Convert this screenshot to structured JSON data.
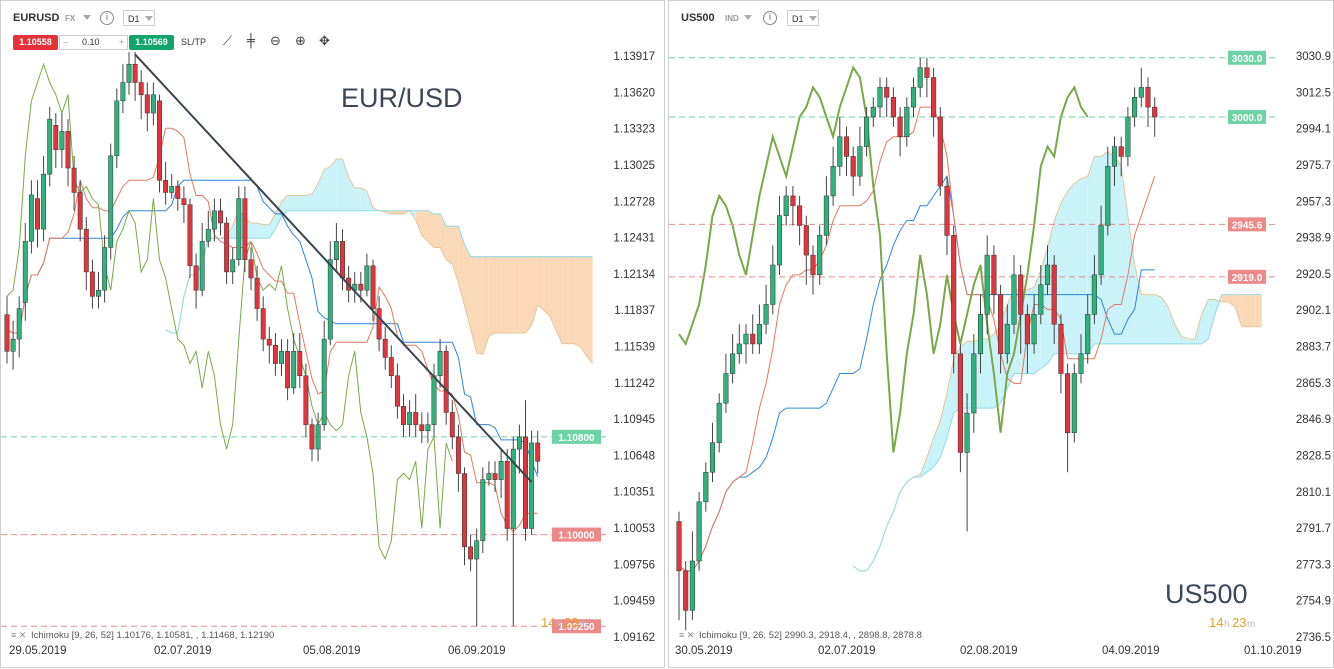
{
  "left": {
    "symbol": "EURUSD",
    "type_tag": "FX",
    "timeframe": "D1",
    "sell_price": "1.10558",
    "quantity": "0.10",
    "buy_price": "1.10569",
    "sltp_label": "SL/TP",
    "indicator": "Ichimoku [9, 26, 52] 1.10176, 1.10581, , 1.11468, 1.12190",
    "countdown": {
      "h": "14",
      "m": "23"
    }
  },
  "right": {
    "symbol": "US500",
    "type_tag": "IND",
    "timeframe": "D1",
    "indicator": "Ichimoku [9, 26, 52] 2990.3, 2918.4, , 2898.8, 2878.8",
    "countdown": {
      "h": "14",
      "m": "23"
    }
  },
  "colors": {
    "sell": "#e3323a",
    "buy": "#13a36c",
    "bull": "#2db37b",
    "bear": "#e1343d",
    "cloud_bull": "#c9f3f8",
    "cloud_bear": "#fbd9b6",
    "level_green": "#6dd3a6",
    "level_red": "#ec8a8a",
    "trendline": "#3a4550"
  },
  "chart_data": [
    {
      "type": "candlestick",
      "title": "EUR/USD",
      "y_ticks": [
        "1.13917",
        "1.13620",
        "1.13323",
        "1.13025",
        "1.12728",
        "1.12431",
        "1.12134",
        "1.11837",
        "1.11539",
        "1.11242",
        "1.10945",
        "1.10648",
        "1.10351",
        "1.10053",
        "1.09756",
        "1.09459",
        "1.09162"
      ],
      "x_ticks": [
        "29.05.2019",
        "02.07.2019",
        "05.08.2019",
        "06.09.2019"
      ],
      "ylim": [
        1.09162,
        1.13917
      ],
      "levels": [
        {
          "label": "1.10800",
          "value": 1.108,
          "color": "green"
        },
        {
          "label": "1.10000",
          "value": 1.1,
          "color": "red"
        },
        {
          "label": "1.09250",
          "value": 1.0925,
          "color": "red"
        }
      ],
      "trendline": {
        "from": {
          "bar": 21,
          "value": 1.1393
        },
        "to": {
          "bar": 86,
          "value": 1.1043
        }
      },
      "candles": [
        [
          1.118,
          1.115,
          1.1195,
          1.114
        ],
        [
          1.115,
          1.116,
          1.1175,
          1.1135
        ],
        [
          1.116,
          1.1185,
          1.1195,
          1.1145
        ],
        [
          1.119,
          1.124,
          1.1255,
          1.1175
        ],
        [
          1.124,
          1.1278,
          1.129,
          1.123
        ],
        [
          1.1275,
          1.125,
          1.129,
          1.1235
        ],
        [
          1.125,
          1.1295,
          1.131,
          1.124
        ],
        [
          1.1295,
          1.134,
          1.135,
          1.1285
        ],
        [
          1.1335,
          1.1315,
          1.1345,
          1.13
        ],
        [
          1.1315,
          1.133,
          1.1345,
          1.13
        ],
        [
          1.133,
          1.13,
          1.134,
          1.1285
        ],
        [
          1.13,
          1.128,
          1.131,
          1.1265
        ],
        [
          1.128,
          1.125,
          1.129,
          1.124
        ],
        [
          1.125,
          1.1215,
          1.126,
          1.12
        ],
        [
          1.1215,
          1.1195,
          1.1225,
          1.1185
        ],
        [
          1.1195,
          1.12,
          1.1215,
          1.1185
        ],
        [
          1.12,
          1.1235,
          1.1245,
          1.119
        ],
        [
          1.1235,
          1.131,
          1.132,
          1.1225
        ],
        [
          1.131,
          1.1355,
          1.1365,
          1.13
        ],
        [
          1.1355,
          1.137,
          1.1385,
          1.1345
        ],
        [
          1.137,
          1.1385,
          1.1395,
          1.136
        ],
        [
          1.1385,
          1.137,
          1.1395,
          1.1355
        ],
        [
          1.137,
          1.136,
          1.138,
          1.134
        ],
        [
          1.136,
          1.1345,
          1.137,
          1.133
        ],
        [
          1.1345,
          1.136,
          1.137,
          1.1335
        ],
        [
          1.1355,
          1.129,
          1.136,
          1.128
        ],
        [
          1.129,
          1.128,
          1.1305,
          1.127
        ],
        [
          1.128,
          1.1285,
          1.1295,
          1.1275
        ],
        [
          1.1285,
          1.1275,
          1.129,
          1.1265
        ],
        [
          1.1275,
          1.127,
          1.1285,
          1.1255
        ],
        [
          1.127,
          1.122,
          1.1275,
          1.121
        ],
        [
          1.122,
          1.12,
          1.123,
          1.1185
        ],
        [
          1.12,
          1.124,
          1.1255,
          1.1195
        ],
        [
          1.124,
          1.125,
          1.1265,
          1.1235
        ],
        [
          1.125,
          1.1265,
          1.1275,
          1.124
        ],
        [
          1.1265,
          1.1255,
          1.1275,
          1.1245
        ],
        [
          1.1255,
          1.1215,
          1.126,
          1.1205
        ],
        [
          1.1215,
          1.1225,
          1.1235,
          1.1205
        ],
        [
          1.1225,
          1.1275,
          1.1285,
          1.122
        ],
        [
          1.1275,
          1.1225,
          1.1285,
          1.1215
        ],
        [
          1.1225,
          1.121,
          1.1235,
          1.12
        ],
        [
          1.121,
          1.1185,
          1.122,
          1.1175
        ],
        [
          1.1185,
          1.116,
          1.1195,
          1.115
        ],
        [
          1.116,
          1.1155,
          1.117,
          1.114
        ],
        [
          1.1155,
          1.114,
          1.1165,
          1.113
        ],
        [
          1.114,
          1.115,
          1.116,
          1.113
        ],
        [
          1.115,
          1.112,
          1.116,
          1.111
        ],
        [
          1.112,
          1.115,
          1.1165,
          1.1115
        ],
        [
          1.115,
          1.113,
          1.1165,
          1.112
        ],
        [
          1.113,
          1.109,
          1.114,
          1.108
        ],
        [
          1.109,
          1.107,
          1.1095,
          1.106
        ],
        [
          1.107,
          1.109,
          1.11,
          1.106
        ],
        [
          1.109,
          1.116,
          1.1175,
          1.1085
        ],
        [
          1.116,
          1.1225,
          1.124,
          1.1155
        ],
        [
          1.1225,
          1.124,
          1.1255,
          1.1215
        ],
        [
          1.124,
          1.121,
          1.125,
          1.12
        ],
        [
          1.121,
          1.12,
          1.122,
          1.119
        ],
        [
          1.12,
          1.1205,
          1.1215,
          1.119
        ],
        [
          1.1205,
          1.12,
          1.1215,
          1.119
        ],
        [
          1.12,
          1.122,
          1.123,
          1.1195
        ],
        [
          1.122,
          1.1185,
          1.1225,
          1.1175
        ],
        [
          1.1185,
          1.116,
          1.1195,
          1.115
        ],
        [
          1.116,
          1.1145,
          1.117,
          1.1135
        ],
        [
          1.1145,
          1.113,
          1.1155,
          1.112
        ],
        [
          1.113,
          1.1105,
          1.114,
          1.1095
        ],
        [
          1.1105,
          1.109,
          1.1115,
          1.108
        ],
        [
          1.109,
          1.11,
          1.111,
          1.108
        ],
        [
          1.11,
          1.109,
          1.1115,
          1.108
        ],
        [
          1.109,
          1.1085,
          1.11,
          1.1075
        ],
        [
          1.1085,
          1.109,
          1.11,
          1.1075
        ],
        [
          1.109,
          1.113,
          1.114,
          1.108
        ],
        [
          1.113,
          1.115,
          1.116,
          1.112
        ],
        [
          1.115,
          1.11,
          1.1155,
          1.109
        ],
        [
          1.11,
          1.108,
          1.111,
          1.107
        ],
        [
          1.108,
          1.105,
          1.109,
          1.1035
        ],
        [
          1.105,
          1.099,
          1.1055,
          1.0975
        ],
        [
          1.099,
          1.098,
          1.1,
          1.097
        ],
        [
          1.098,
          1.0995,
          1.1005,
          1.0925
        ],
        [
          1.0995,
          1.1045,
          1.1055,
          1.0985
        ],
        [
          1.1045,
          1.105,
          1.106,
          1.104
        ],
        [
          1.105,
          1.1045,
          1.106,
          1.1035
        ],
        [
          1.1045,
          1.106,
          1.107,
          1.103
        ],
        [
          1.106,
          1.1005,
          1.107,
          1.0995
        ],
        [
          1.1005,
          1.107,
          1.108,
          1.0925
        ],
        [
          1.107,
          1.108,
          1.109,
          1.105
        ],
        [
          1.108,
          1.1005,
          1.111,
          1.0995
        ],
        [
          1.1005,
          1.1075,
          1.1085,
          1.1
        ],
        [
          1.1075,
          1.106,
          1.1085,
          1.105
        ]
      ]
    },
    {
      "type": "candlestick",
      "title": "US500",
      "y_ticks": [
        "3030.9",
        "3012.5",
        "2994.1",
        "2975.7",
        "2957.3",
        "2938.9",
        "2920.5",
        "2902.1",
        "2883.7",
        "2865.3",
        "2846.9",
        "2828.5",
        "2810.1",
        "2791.7",
        "2773.3",
        "2754.9",
        "2736.5"
      ],
      "x_ticks": [
        "30.05.2019",
        "02.07.2019",
        "02.08.2019",
        "04.09.2019",
        "01.10.2019"
      ],
      "ylim": [
        2736.5,
        3030.9
      ],
      "levels": [
        {
          "label": "3030.0",
          "value": 3030.0,
          "color": "green"
        },
        {
          "label": "3000.0",
          "value": 3000.0,
          "color": "green"
        },
        {
          "label": "2945.6",
          "value": 2945.6,
          "color": "red"
        },
        {
          "label": "2919.0",
          "value": 2919.0,
          "color": "red"
        }
      ],
      "candles": [
        [
          2795,
          2770,
          2800,
          2745
        ],
        [
          2770,
          2750,
          2775,
          2740
        ],
        [
          2750,
          2775,
          2790,
          2745
        ],
        [
          2775,
          2805,
          2810,
          2770
        ],
        [
          2805,
          2820,
          2825,
          2800
        ],
        [
          2820,
          2835,
          2845,
          2815
        ],
        [
          2835,
          2855,
          2860,
          2830
        ],
        [
          2855,
          2870,
          2880,
          2850
        ],
        [
          2870,
          2880,
          2890,
          2865
        ],
        [
          2880,
          2885,
          2895,
          2875
        ],
        [
          2885,
          2890,
          2895,
          2875
        ],
        [
          2890,
          2885,
          2900,
          2880
        ],
        [
          2885,
          2895,
          2905,
          2880
        ],
        [
          2895,
          2905,
          2915,
          2890
        ],
        [
          2905,
          2925,
          2935,
          2900
        ],
        [
          2925,
          2950,
          2960,
          2920
        ],
        [
          2950,
          2960,
          2965,
          2945
        ],
        [
          2960,
          2955,
          2965,
          2945
        ],
        [
          2955,
          2945,
          2960,
          2935
        ],
        [
          2945,
          2930,
          2950,
          2915
        ],
        [
          2930,
          2920,
          2935,
          2910
        ],
        [
          2920,
          2940,
          2945,
          2915
        ],
        [
          2940,
          2960,
          2970,
          2935
        ],
        [
          2960,
          2975,
          2985,
          2955
        ],
        [
          2975,
          2990,
          3000,
          2970
        ],
        [
          2990,
          2980,
          2995,
          2970
        ],
        [
          2980,
          2970,
          2985,
          2960
        ],
        [
          2970,
          2985,
          2995,
          2965
        ],
        [
          2985,
          3000,
          3005,
          2980
        ],
        [
          3000,
          3005,
          3010,
          2995
        ],
        [
          3005,
          3015,
          3020,
          3000
        ],
        [
          3015,
          3010,
          3020,
          3000
        ],
        [
          3010,
          3000,
          3015,
          2995
        ],
        [
          3000,
          2990,
          3005,
          2980
        ],
        [
          2990,
          3005,
          3010,
          2985
        ],
        [
          3005,
          3015,
          3020,
          3000
        ],
        [
          3015,
          3025,
          3030,
          3010
        ],
        [
          3025,
          3020,
          3030,
          3010
        ],
        [
          3020,
          3000,
          3025,
          2990
        ],
        [
          3000,
          2965,
          3005,
          2960
        ],
        [
          2965,
          2940,
          2970,
          2930
        ],
        [
          2940,
          2880,
          2945,
          2870
        ],
        [
          2880,
          2830,
          2885,
          2820
        ],
        [
          2830,
          2850,
          2860,
          2790
        ],
        [
          2850,
          2880,
          2890,
          2840
        ],
        [
          2880,
          2900,
          2910,
          2870
        ],
        [
          2900,
          2930,
          2940,
          2890
        ],
        [
          2930,
          2910,
          2935,
          2900
        ],
        [
          2910,
          2880,
          2915,
          2870
        ],
        [
          2880,
          2895,
          2905,
          2875
        ],
        [
          2895,
          2920,
          2930,
          2890
        ],
        [
          2920,
          2900,
          2925,
          2880
        ],
        [
          2900,
          2885,
          2905,
          2870
        ],
        [
          2885,
          2900,
          2910,
          2880
        ],
        [
          2900,
          2915,
          2925,
          2895
        ],
        [
          2915,
          2925,
          2935,
          2910
        ],
        [
          2925,
          2895,
          2930,
          2885
        ],
        [
          2895,
          2870,
          2900,
          2860
        ],
        [
          2870,
          2840,
          2875,
          2820
        ],
        [
          2840,
          2870,
          2875,
          2835
        ],
        [
          2870,
          2880,
          2890,
          2865
        ],
        [
          2880,
          2900,
          2910,
          2875
        ],
        [
          2900,
          2920,
          2930,
          2895
        ],
        [
          2920,
          2945,
          2955,
          2915
        ],
        [
          2945,
          2975,
          2985,
          2940
        ],
        [
          2975,
          2985,
          2990,
          2965
        ],
        [
          2985,
          2980,
          2990,
          2970
        ],
        [
          2980,
          3000,
          3005,
          2975
        ],
        [
          3000,
          3010,
          3015,
          2995
        ],
        [
          3010,
          3015,
          3025,
          3005
        ],
        [
          3015,
          3005,
          3020,
          2995
        ],
        [
          3005,
          3000,
          3010,
          2990
        ]
      ]
    }
  ]
}
